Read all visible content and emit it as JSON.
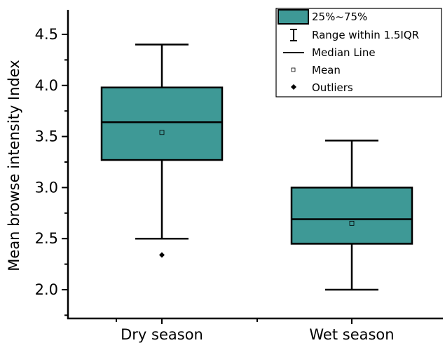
{
  "chart_data": {
    "type": "box",
    "ylabel": "Mean browse intensity Index",
    "xlabel": "",
    "ylim": [
      1.85,
      4.75
    ],
    "yticks": [
      "2.0",
      "2.5",
      "3.0",
      "3.5",
      "4.0",
      "4.5"
    ],
    "categories": [
      "Dry season",
      "Wet season"
    ],
    "boxes": [
      {
        "category": "Dry season",
        "whisker_low": 2.5,
        "q1": 3.27,
        "median": 3.64,
        "q3": 3.98,
        "whisker_high": 4.4,
        "mean": 3.54,
        "outliers": [
          2.34
        ]
      },
      {
        "category": "Wet season",
        "whisker_low": 2.0,
        "q1": 2.45,
        "median": 2.69,
        "q3": 3.0,
        "whisker_high": 3.46,
        "mean": 2.65,
        "outliers": []
      }
    ],
    "legend": {
      "position": "top-right",
      "entries": [
        "25%~75%",
        "Range within 1.5IQR",
        "Median Line",
        "Mean",
        "Outliers"
      ]
    },
    "box_color": "#3e9996",
    "grid": false
  }
}
